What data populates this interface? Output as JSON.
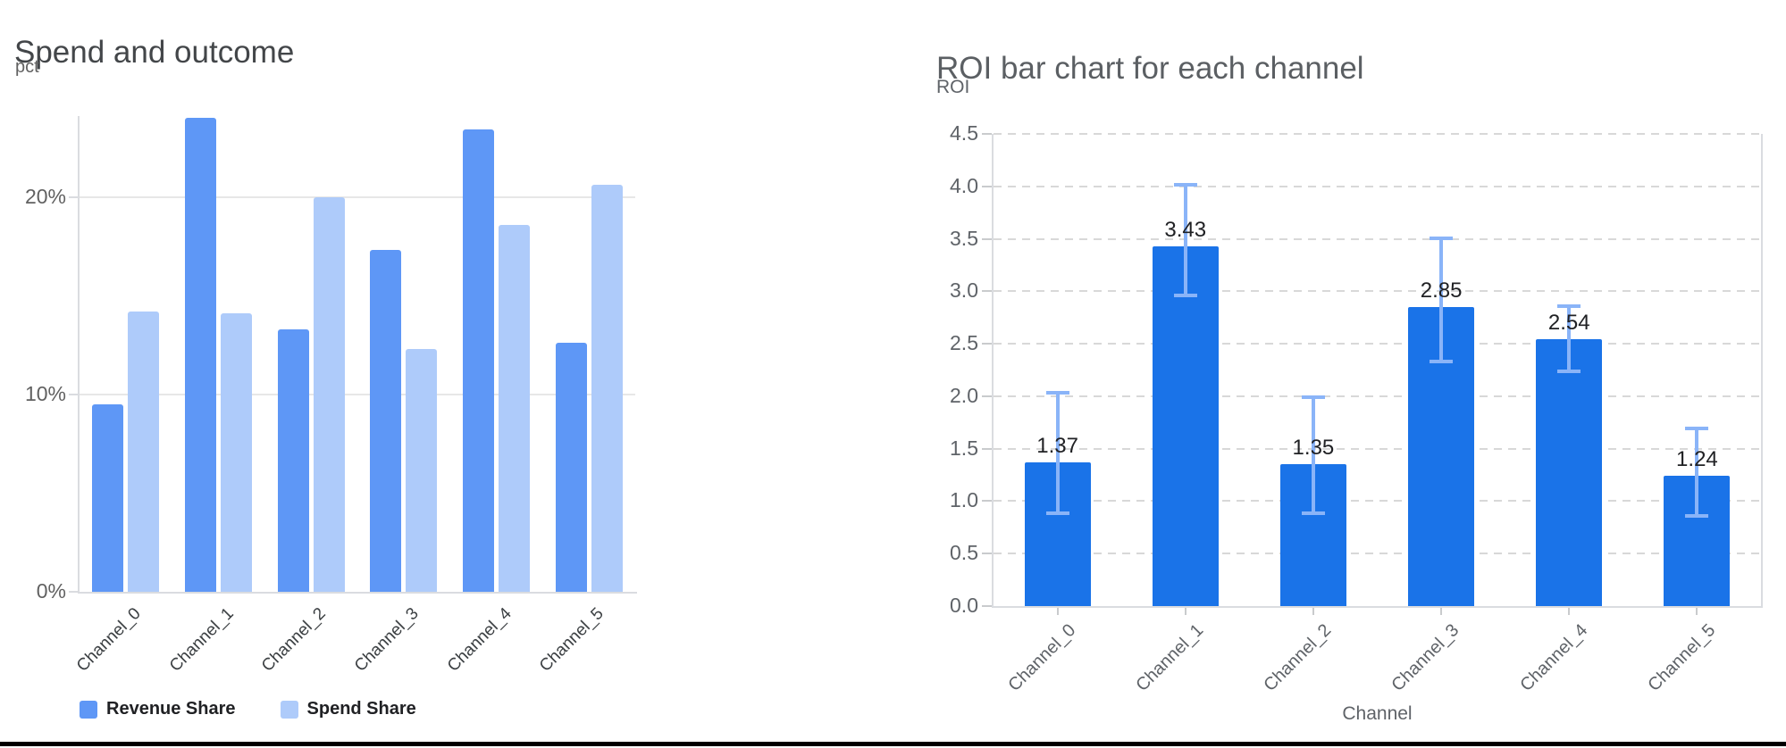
{
  "colors": {
    "revenue_bar": "#5E97F6",
    "spend_bar": "#AECBFA",
    "roi_bar": "#1A73E8",
    "error_bar": "#8AB4F8",
    "gridline": "#E7E7E7",
    "dashed_gridline": "#D8D8D8",
    "axis_line": "#DADCE0",
    "tick_mark": "#C9CBCD",
    "value_label_text": "#202124",
    "bottom_divider": "#000000"
  },
  "chart_data": [
    {
      "id": "spend_outcome",
      "type": "bar",
      "title": "Spend and outcome",
      "ylabel": "pct",
      "xlabel": "",
      "categories": [
        "Channel_0",
        "Channel_1",
        "Channel_2",
        "Channel_3",
        "Channel_4",
        "Channel_5"
      ],
      "series": [
        {
          "name": "Revenue Share",
          "color": "#5E97F6",
          "values": [
            9.5,
            24.0,
            13.3,
            17.3,
            23.4,
            12.6
          ]
        },
        {
          "name": "Spend Share",
          "color": "#AECBFA",
          "values": [
            14.2,
            14.1,
            20.0,
            12.3,
            18.6,
            20.6
          ]
        }
      ],
      "y_ticks": [
        {
          "value": 0,
          "label": "0%"
        },
        {
          "value": 10,
          "label": "10%"
        },
        {
          "value": 20,
          "label": "20%"
        }
      ],
      "ylim": [
        0,
        24.1
      ],
      "grid": "solid",
      "legend_position": "bottom"
    },
    {
      "id": "roi_by_channel",
      "type": "bar",
      "title": "ROI bar chart for each channel",
      "ylabel": "ROI",
      "xlabel": "Channel",
      "categories": [
        "Channel_0",
        "Channel_1",
        "Channel_2",
        "Channel_3",
        "Channel_4",
        "Channel_5"
      ],
      "values": [
        1.37,
        3.43,
        1.35,
        2.85,
        2.54,
        1.24
      ],
      "value_labels": [
        "1.37",
        "3.43",
        "1.35",
        "2.85",
        "2.54",
        "1.24"
      ],
      "error_low": [
        0.88,
        2.95,
        0.88,
        2.32,
        2.23,
        0.85
      ],
      "error_high": [
        2.04,
        4.02,
        2.0,
        3.51,
        2.87,
        1.7
      ],
      "y_ticks": [
        {
          "value": 0.0,
          "label": "0.0"
        },
        {
          "value": 0.5,
          "label": "0.5"
        },
        {
          "value": 1.0,
          "label": "1.0"
        },
        {
          "value": 1.5,
          "label": "1.5"
        },
        {
          "value": 2.0,
          "label": "2.0"
        },
        {
          "value": 2.5,
          "label": "2.5"
        },
        {
          "value": 3.0,
          "label": "3.0"
        },
        {
          "value": 3.5,
          "label": "3.5"
        },
        {
          "value": 4.0,
          "label": "4.0"
        },
        {
          "value": 4.5,
          "label": "4.5"
        }
      ],
      "ylim": [
        0,
        4.5
      ],
      "grid": "dashed",
      "legend_position": "none"
    }
  ]
}
